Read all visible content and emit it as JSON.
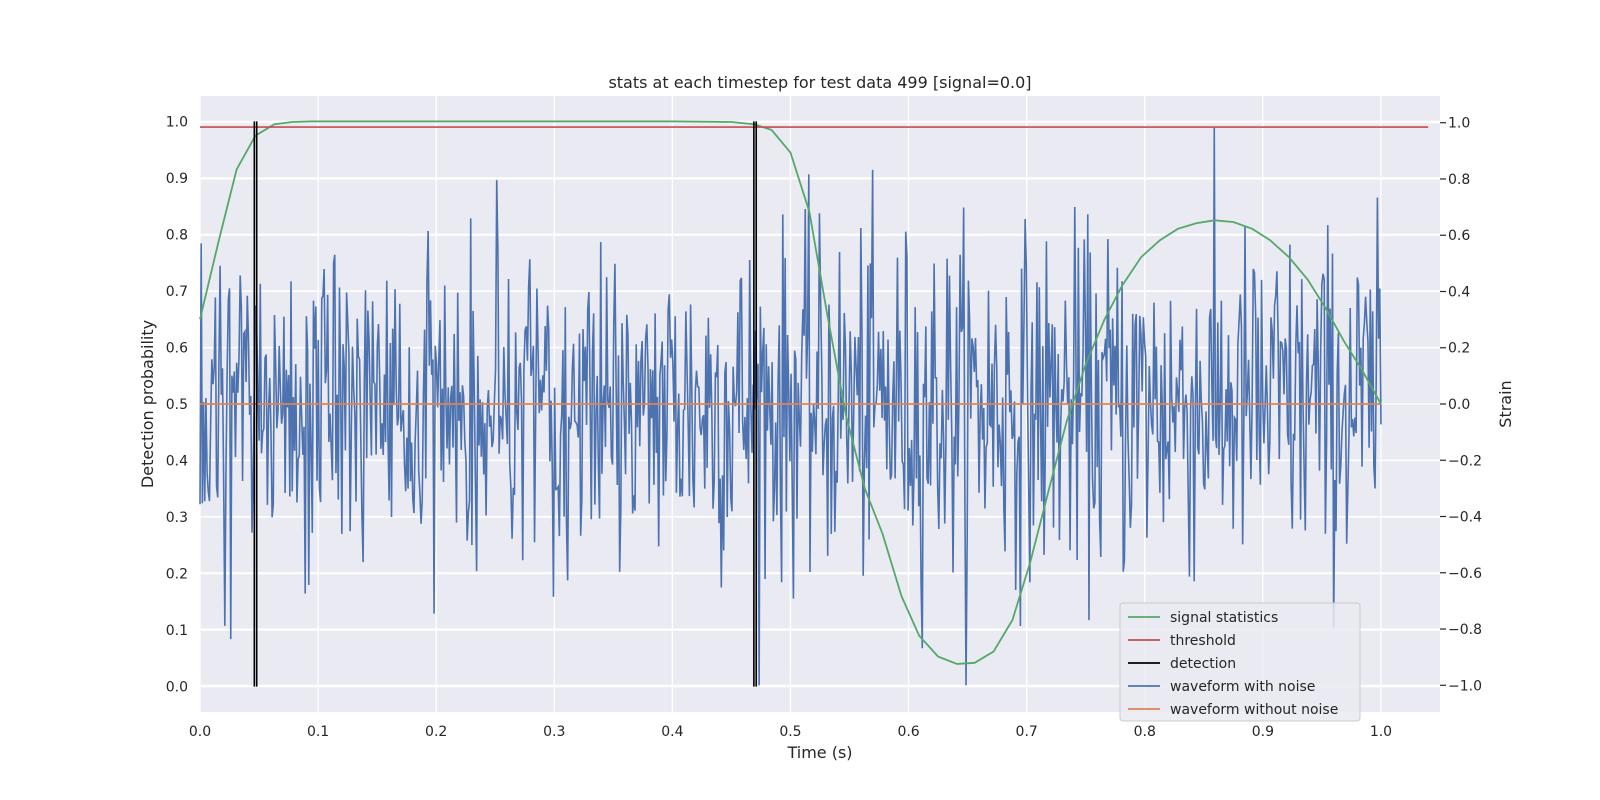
{
  "chart_data": {
    "type": "line",
    "title": "stats at each timestep for test data 499 [signal=0.0]",
    "xlabel": "Time (s)",
    "ylabel": "Detection probability",
    "y2label": "Strain",
    "xlim": [
      0.0,
      1.05
    ],
    "ylim": [
      -0.045,
      1.045
    ],
    "y2lim": [
      -1.095,
      1.095
    ],
    "xticks": [
      "0.0",
      "0.1",
      "0.2",
      "0.3",
      "0.4",
      "0.5",
      "0.6",
      "0.7",
      "0.8",
      "0.9",
      "1.0"
    ],
    "yticks": [
      "0.0",
      "0.1",
      "0.2",
      "0.3",
      "0.4",
      "0.5",
      "0.6",
      "0.7",
      "0.8",
      "0.9",
      "1.0"
    ],
    "y2ticks": [
      "−1.0",
      "−0.8",
      "−0.6",
      "−0.4",
      "−0.2",
      "0.0",
      "0.2",
      "0.4",
      "0.6",
      "0.8",
      "1.0"
    ],
    "grid": true,
    "legend_position": "lower-right",
    "series": [
      {
        "name": "signal statistics",
        "axis": "left",
        "color": "#55a868",
        "x": [
          0.0,
          0.016,
          0.031,
          0.047,
          0.063,
          0.078,
          0.094,
          0.109,
          0.125,
          0.2,
          0.3,
          0.4,
          0.45,
          0.469,
          0.484,
          0.5,
          0.516,
          0.531,
          0.547,
          0.563,
          0.578,
          0.594,
          0.609,
          0.625,
          0.641,
          0.656,
          0.672,
          0.688,
          0.703,
          0.719,
          0.734,
          0.75,
          0.766,
          0.781,
          0.797,
          0.813,
          0.828,
          0.844,
          0.859,
          0.875,
          0.891,
          0.906,
          0.922,
          0.938,
          0.953,
          0.969,
          0.984,
          1.0
        ],
        "y": [
          0.65,
          0.79,
          0.915,
          0.975,
          0.995,
          0.999,
          1.0,
          1.0,
          1.0,
          1.0,
          1.0,
          1.0,
          0.999,
          0.995,
          0.985,
          0.945,
          0.84,
          0.66,
          0.48,
          0.35,
          0.27,
          0.16,
          0.09,
          0.053,
          0.04,
          0.042,
          0.062,
          0.118,
          0.22,
          0.35,
          0.47,
          0.57,
          0.65,
          0.71,
          0.76,
          0.79,
          0.81,
          0.82,
          0.825,
          0.822,
          0.81,
          0.79,
          0.76,
          0.72,
          0.67,
          0.61,
          0.56,
          0.5
        ]
      },
      {
        "name": "threshold",
        "axis": "left",
        "color": "#c44e52",
        "x": [
          0.0,
          1.04
        ],
        "y": [
          0.99,
          0.99
        ]
      },
      {
        "name": "detection",
        "axis": "left",
        "color": "#000000",
        "type": "vlines",
        "x": [
          0.046,
          0.048,
          0.469,
          0.471
        ],
        "ymin": 0.0,
        "ymax": 1.0
      },
      {
        "name": "waveform with noise",
        "axis": "right",
        "color": "#4c72b0",
        "x_range": [
          0.0,
          1.0
        ],
        "n_points": 1000,
        "noise_std": 0.3,
        "y_range": [
          -1.0,
          1.0
        ]
      },
      {
        "name": "waveform without noise",
        "axis": "right",
        "color": "#dd8452",
        "x": [
          0.0,
          1.0
        ],
        "y": [
          0.0,
          0.0
        ]
      }
    ]
  }
}
